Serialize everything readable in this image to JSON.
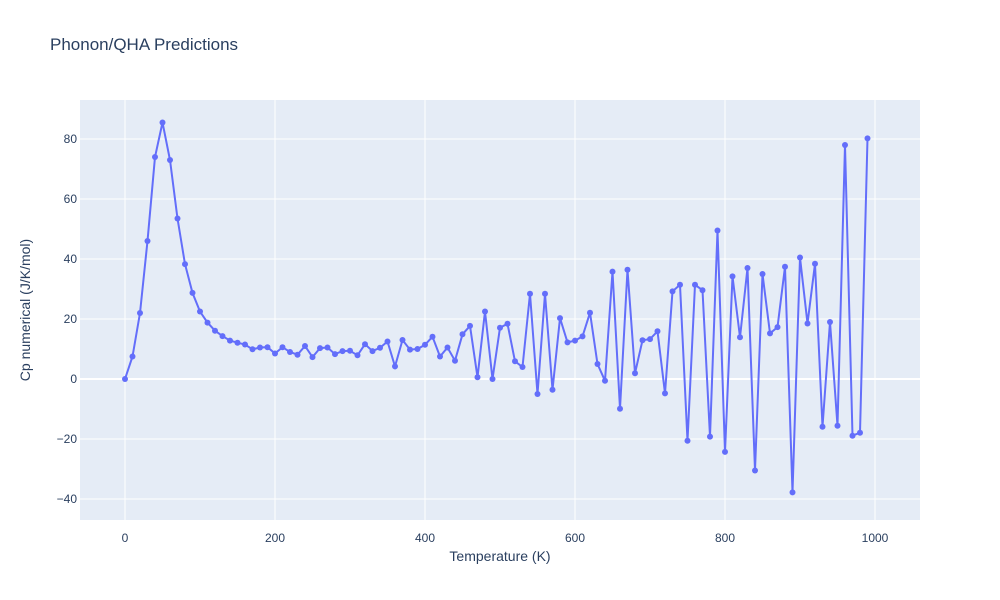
{
  "chart_data": {
    "type": "line",
    "mode": "lines+markers",
    "title": "Phonon/QHA Predictions",
    "xlabel": "Temperature (K)",
    "ylabel": "Cp numerical (J/K/mol)",
    "xlim": [
      -60,
      1060
    ],
    "ylim": [
      -47,
      93
    ],
    "xticks": [
      0,
      200,
      400,
      600,
      800,
      1000
    ],
    "yticks": [
      -40,
      -20,
      0,
      20,
      40,
      60,
      80
    ],
    "grid": true,
    "legend": "none",
    "colors": {
      "line": "#636efa",
      "plot_bg": "#e5ecf6",
      "grid": "#ffffff",
      "text": "#2a3f5f"
    },
    "x": [
      0,
      10,
      20,
      30,
      40,
      50,
      60,
      70,
      80,
      90,
      100,
      110,
      120,
      130,
      140,
      150,
      160,
      170,
      180,
      190,
      200,
      210,
      220,
      230,
      240,
      250,
      260,
      270,
      280,
      290,
      300,
      310,
      320,
      330,
      340,
      350,
      360,
      370,
      380,
      390,
      400,
      410,
      420,
      430,
      440,
      450,
      460,
      470,
      480,
      490,
      500,
      510,
      520,
      530,
      540,
      550,
      560,
      570,
      580,
      590,
      600,
      610,
      620,
      630,
      640,
      650,
      660,
      670,
      680,
      690,
      700,
      710,
      720,
      730,
      740,
      750,
      760,
      770,
      780,
      790,
      800,
      810,
      820,
      830,
      840,
      850,
      860,
      870,
      880,
      890,
      900,
      910,
      920,
      930,
      940,
      950,
      960,
      970,
      980,
      990
    ],
    "y": [
      0,
      7.5,
      22,
      46,
      74,
      85.5,
      73,
      53.5,
      38.3,
      28.7,
      22.5,
      18.8,
      16.1,
      14.3,
      12.8,
      12.1,
      11.5,
      9.9,
      10.5,
      10.6,
      8.5,
      10.6,
      9.0,
      8.1,
      11.0,
      7.3,
      10.3,
      10.5,
      8.3,
      9.3,
      9.4,
      7.9,
      11.6,
      9.3,
      10.4,
      12.5,
      4.2,
      13.0,
      9.8,
      10.0,
      11.4,
      14.1,
      7.5,
      10.5,
      6.1,
      14.9,
      17.7,
      0.6,
      22.5,
      0.0,
      17.1,
      18.4,
      5.9,
      4.0,
      28.4,
      -5.0,
      28.4,
      -3.6,
      20.3,
      12.2,
      12.8,
      14.2,
      22.1,
      5.0,
      -0.6,
      35.8,
      -9.9,
      36.4,
      1.9,
      12.9,
      13.3,
      15.9,
      -4.8,
      29.2,
      31.4,
      -20.6,
      31.4,
      29.6,
      -19.2,
      49.5,
      -24.3,
      34.2,
      13.9,
      37.0,
      -30.5,
      35.0,
      15.2,
      17.3,
      37.4,
      -37.8,
      40.5,
      18.5,
      38.4,
      -15.9,
      19.0,
      -15.6,
      78.0,
      -18.9,
      -17.9,
      80.2
    ]
  }
}
